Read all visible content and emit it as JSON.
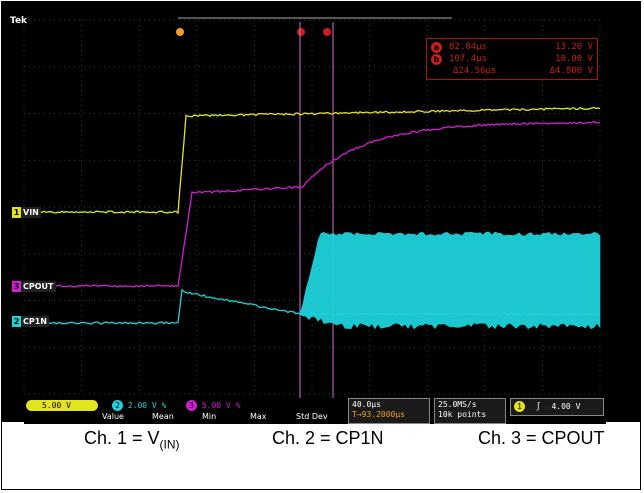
{
  "brand": "Tek",
  "cursor_readout": {
    "cursor_a": {
      "marker": "a",
      "time": "82.84μs",
      "volts": "13.20 V"
    },
    "cursor_b": {
      "marker": "b",
      "time": "107.4μs",
      "volts": "18.00 V"
    },
    "delta": {
      "time": "Δ24.56μs",
      "volts": "Δ4.800 V"
    }
  },
  "top_markers": {
    "trigger": "T",
    "cursor_a": "a",
    "cursor_b": "b"
  },
  "channels": [
    {
      "id": "1",
      "label": "VIN",
      "color": "#e4e41e"
    },
    {
      "id": "3",
      "label": "CPOUT",
      "color": "#d21ed2"
    },
    {
      "id": "2",
      "label": "CP1N",
      "color": "#1ed2dc"
    }
  ],
  "settings_bar": {
    "ch1": {
      "num": "1",
      "scale": "5.00 V"
    },
    "ch2": {
      "num": "2",
      "scale": "2.00 V",
      "suffix": "%"
    },
    "ch3": {
      "num": "3",
      "scale": "5.00 V",
      "suffix": "%"
    },
    "stats_headers": [
      "Value",
      "Mean",
      "Min",
      "Max",
      "Std Dev"
    ],
    "timebase": "40.0μs",
    "trigger_pos": "T→93.2000μs",
    "sample_rate": "25.0MS/s",
    "record_length": "10k points",
    "trigger": {
      "source": "1",
      "slope": "∫",
      "level": "4.00 V"
    }
  },
  "captions": {
    "ch1_prefix": "Ch. 1 = V",
    "ch1_sub": "(IN)",
    "ch2": "Ch. 2 = CP1N",
    "ch3": "Ch. 3 = CPOUT"
  },
  "colors": {
    "background": "#000000",
    "grid": "#3a3a3a",
    "cursor": "#c81e1e",
    "cursor_line": "#d070d0"
  }
}
